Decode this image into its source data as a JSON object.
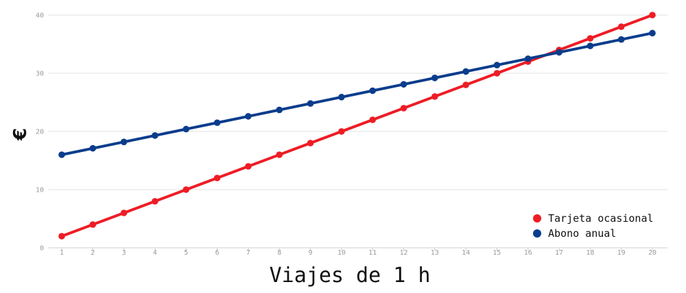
{
  "chart_data": {
    "type": "line",
    "x": [
      1,
      2,
      3,
      4,
      5,
      6,
      7,
      8,
      9,
      10,
      11,
      12,
      13,
      14,
      15,
      16,
      17,
      18,
      19,
      20
    ],
    "xlabel": "Viajes de 1 h",
    "ylabel": "€",
    "ylim": [
      0,
      40
    ],
    "yticks": [
      0,
      10,
      20,
      30,
      40
    ],
    "grid": true,
    "legend_position": "bottom-right",
    "series": [
      {
        "name": "Tarjeta ocasional",
        "color": "#ee1c25",
        "values": [
          2,
          4,
          6,
          8,
          10,
          12,
          14,
          16,
          18,
          20,
          22,
          24,
          26,
          28,
          30,
          32,
          34,
          36,
          38,
          40
        ]
      },
      {
        "name": "Abono anual",
        "color": "#0a3d8c",
        "values": [
          16,
          17.1,
          18.2,
          19.3,
          20.4,
          21.5,
          22.6,
          23.7,
          24.8,
          25.9,
          27,
          28.1,
          29.2,
          30.3,
          31.4,
          32.5,
          33.6,
          34.7,
          35.8,
          36.9
        ]
      }
    ]
  }
}
